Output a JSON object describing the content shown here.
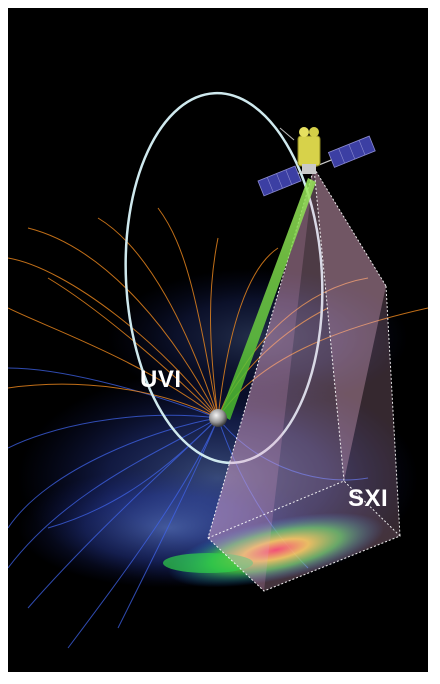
{
  "labels": {
    "uvi": "UVI",
    "sxi": "SXI"
  },
  "colors": {
    "background": "#000000",
    "frame": "#ffffff",
    "orbit_ring": "#cfe9ee",
    "uvi_beam": "#6ccf3a",
    "sxi_volume": "#f0b6d8",
    "sxi_edges": "#ffffff",
    "field_lines_north": "#f08a1e",
    "field_lines_south": "#3f63e8",
    "magnetosphere_glow": "#4b6ce8",
    "solar_panel": "#3c3fa3",
    "spacecraft_body": "#d7d24a"
  },
  "icons": {
    "spacecraft": "satellite-icon",
    "earth": "earth-icon"
  }
}
